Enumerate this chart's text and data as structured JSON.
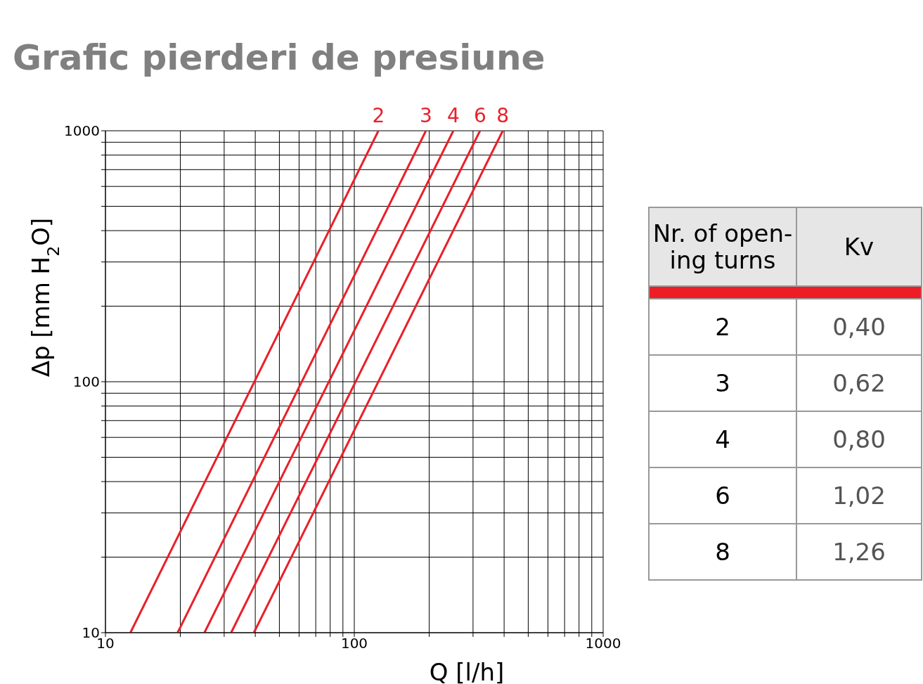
{
  "chart_data": [
    {
      "type": "line",
      "title": "Grafic pierderi de presiune",
      "xlabel": "Q [l/h]",
      "ylabel": "Δp [mm H$_{2}$O]",
      "log": "xy",
      "grid": true,
      "legend": false,
      "xlim": [
        10,
        1000
      ],
      "ylim": [
        10,
        1000
      ],
      "xticks": [
        10,
        {
          "value": 20,
          "label": null
        },
        {
          "value": 30,
          "label": null
        },
        {
          "value": 40,
          "label": null
        },
        {
          "value": 50,
          "label": null
        },
        {
          "value": 60,
          "label": null
        },
        {
          "value": 70,
          "label": null
        },
        {
          "value": 80,
          "label": null
        },
        {
          "value": 90,
          "label": null
        },
        100,
        {
          "value": 200,
          "label": null
        },
        {
          "value": 300,
          "label": null
        },
        {
          "value": 400,
          "label": null
        },
        {
          "value": 500,
          "label": null
        },
        {
          "value": 600,
          "label": null
        },
        {
          "value": 700,
          "label": null
        },
        {
          "value": 800,
          "label": null
        },
        {
          "value": 900,
          "label": null
        },
        1000
      ],
      "yticks": [
        10,
        {
          "value": 20,
          "label": null
        },
        {
          "value": 30,
          "label": null
        },
        {
          "value": 40,
          "label": null
        },
        {
          "value": 50,
          "label": null
        },
        {
          "value": 60,
          "label": null
        },
        {
          "value": 70,
          "label": null
        },
        {
          "value": 80,
          "label": null
        },
        {
          "value": 90,
          "label": null
        },
        100,
        {
          "value": 200,
          "label": null
        },
        {
          "value": 300,
          "label": null
        },
        {
          "value": 400,
          "label": null
        },
        {
          "value": 500,
          "label": null
        },
        {
          "value": 600,
          "label": null
        },
        {
          "value": 700,
          "label": null
        },
        {
          "value": 800,
          "label": null
        },
        {
          "value": 900,
          "label": null
        },
        1000
      ],
      "series": [
        {
          "name": "2",
          "color": "#e8202a",
          "x": [
            12.6,
            125
          ],
          "values": [
            10,
            1000
          ]
        },
        {
          "name": "3",
          "color": "#e8202a",
          "x": [
            19.5,
            194
          ],
          "values": [
            10,
            1000
          ]
        },
        {
          "name": "4",
          "color": "#e8202a",
          "x": [
            25,
            250
          ],
          "values": [
            10,
            1000
          ]
        },
        {
          "name": "6",
          "color": "#e8202a",
          "x": [
            32,
            320
          ],
          "values": [
            10,
            1000
          ]
        },
        {
          "name": "8",
          "color": "#e8202a",
          "x": [
            39.5,
            395
          ],
          "values": [
            10,
            1000
          ]
        }
      ]
    },
    {
      "type": "other",
      "xlabel": "Nr. of open-ing turns",
      "ylabel": "Kv",
      "categories": [
        "2",
        "3",
        "4",
        "6",
        "8"
      ],
      "annotations": [
        "0,40",
        "0,62",
        "0,80",
        "1,02",
        "1,26"
      ]
    }
  ]
}
